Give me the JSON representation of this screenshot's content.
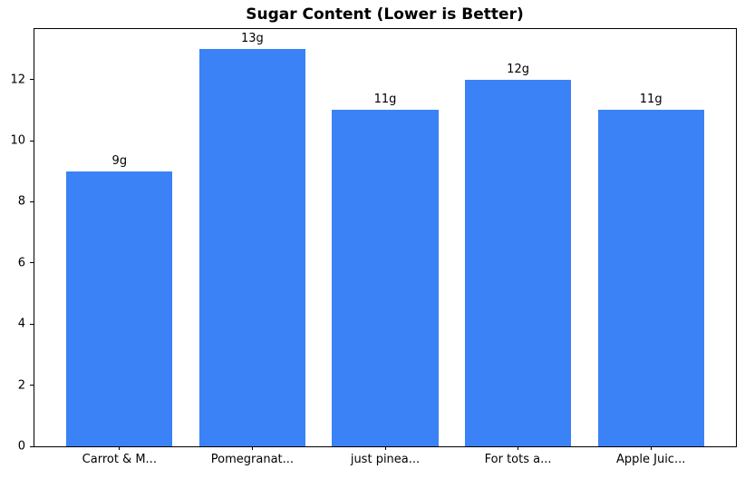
{
  "chart_data": {
    "type": "bar",
    "title": "Sugar Content (Lower is Better)",
    "categories": [
      "Carrot & M...",
      "Pomegranat...",
      "just pinea...",
      "For tots a...",
      "Apple Juic..."
    ],
    "values": [
      9,
      13,
      11,
      12,
      11
    ],
    "bar_labels": [
      "9g",
      "13g",
      "11g",
      "12g",
      "11g"
    ],
    "xlabel": "",
    "ylabel": "",
    "ylim": [
      0,
      13.65
    ],
    "yticks": [
      0,
      2,
      4,
      6,
      8,
      10,
      12
    ],
    "bar_color": "#3b82f6",
    "axis_color": "#000000",
    "text_color": "#000000",
    "background_color": "#ffffff",
    "grid": false,
    "legend": "none"
  }
}
